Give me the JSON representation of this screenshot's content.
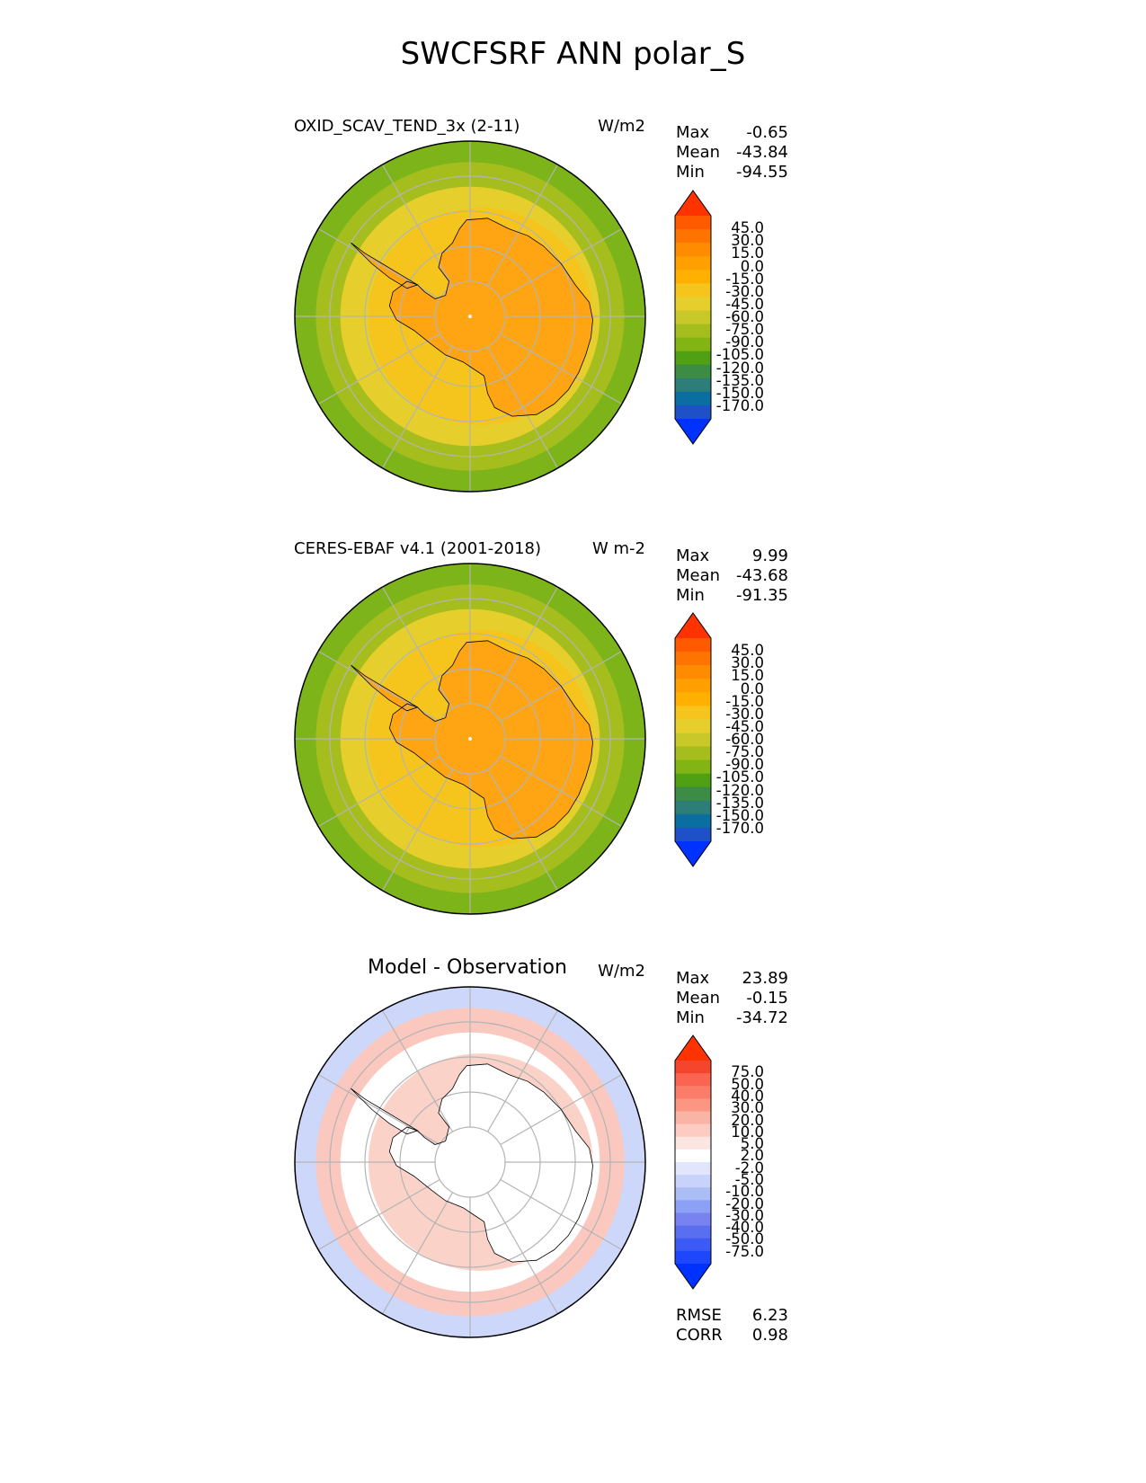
{
  "figure_title": "SWCFSRF ANN polar_S",
  "panels": [
    {
      "title": "OXID_SCAV_TEND_3x (2-11)",
      "units": "W/m2",
      "stats": {
        "max_label": "Max",
        "max": "-0.65",
        "mean_label": "Mean",
        "mean": "-43.84",
        "min_label": "Min",
        "min": "-94.55"
      },
      "colorbar": {
        "labels": [
          "45.0",
          "30.0",
          "15.0",
          "0.0",
          "-15.0",
          "-30.0",
          "-45.0",
          "-60.0",
          "-75.0",
          "-90.0",
          "-105.0",
          "-120.0",
          "-135.0",
          "-150.0",
          "-170.0"
        ],
        "colors": [
          "#ff3300",
          "#ff5a00",
          "#ff7300",
          "#ff8c00",
          "#ff9f00",
          "#ffb000",
          "#f5c51e",
          "#e6cf2d",
          "#c8c828",
          "#a5be1e",
          "#82b414",
          "#50a014",
          "#3c8c46",
          "#2d7d78",
          "#0a6ea0",
          "#1e50c8",
          "#0032ff"
        ],
        "cap_top": "#ff3300",
        "cap_bottom": "#0032ff"
      },
      "map_colors": {
        "ocean_outer": "#7db41a",
        "ocean_mid": "#a5be1e",
        "ice_edge": "#e6cf2d",
        "coast_band": "#f5c51e",
        "land": "#ffa514"
      }
    },
    {
      "title": "CERES-EBAF v4.1 (2001-2018)",
      "units": "W m-2",
      "stats": {
        "max_label": "Max",
        "max": "9.99",
        "mean_label": "Mean",
        "mean": "-43.68",
        "min_label": "Min",
        "min": "-91.35"
      },
      "colorbar": {
        "labels": [
          "45.0",
          "30.0",
          "15.0",
          "0.0",
          "-15.0",
          "-30.0",
          "-45.0",
          "-60.0",
          "-75.0",
          "-90.0",
          "-105.0",
          "-120.0",
          "-135.0",
          "-150.0",
          "-170.0"
        ],
        "colors": [
          "#ff3300",
          "#ff5a00",
          "#ff7300",
          "#ff8c00",
          "#ff9f00",
          "#ffb000",
          "#f5c51e",
          "#e6cf2d",
          "#c8c828",
          "#a5be1e",
          "#82b414",
          "#50a014",
          "#3c8c46",
          "#2d7d78",
          "#0a6ea0",
          "#1e50c8",
          "#0032ff"
        ],
        "cap_top": "#ff3300",
        "cap_bottom": "#0032ff"
      },
      "map_colors": {
        "ocean_outer": "#7db41a",
        "ocean_mid": "#a5be1e",
        "ice_edge": "#e6cf2d",
        "coast_band": "#f5c51e",
        "land": "#ffa514"
      }
    },
    {
      "title": "Model - Observation",
      "units": "W/m2",
      "stats": {
        "max_label": "Max",
        "max": "23.89",
        "mean_label": "Mean",
        "mean": "-0.15",
        "min_label": "Min",
        "min": "-34.72"
      },
      "colorbar": {
        "labels": [
          "75.0",
          "50.0",
          "40.0",
          "30.0",
          "20.0",
          "10.0",
          "5.0",
          "2.0",
          "-2.0",
          "-5.0",
          "-10.0",
          "-20.0",
          "-30.0",
          "-40.0",
          "-50.0",
          "-75.0"
        ],
        "colors": [
          "#ff3300",
          "#f5462d",
          "#fa6450",
          "#fa7d69",
          "#fa9682",
          "#fab4a5",
          "#fcccc3",
          "#fde6e1",
          "#ffffff",
          "#e1e6fc",
          "#c8d2fa",
          "#aabef5",
          "#8ca0f5",
          "#7882f0",
          "#5a6ef0",
          "#3c5af5",
          "#1e46fa",
          "#0032ff"
        ],
        "cap_top": "#ff3300",
        "cap_bottom": "#0032ff"
      },
      "map_colors": {
        "ocean_outer": "#cdd7fa",
        "ocean_mid": "#fac8be",
        "ice_edge": "#ffffff",
        "coast_band": "#fad2c8",
        "land": "#ffffff"
      },
      "footer": {
        "rmse_label": "RMSE",
        "rmse": "6.23",
        "corr_label": "CORR",
        "corr": "0.98"
      }
    }
  ]
}
